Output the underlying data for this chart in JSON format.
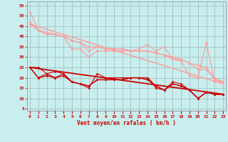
{
  "xlabel": "Vent moyen/en rafales ( km/h )",
  "bg_color": "#c8eeee",
  "grid_color": "#a0b8b8",
  "xlim": [
    -0.3,
    23.3
  ],
  "ylim": [
    4,
    57
  ],
  "yticks": [
    5,
    10,
    15,
    20,
    25,
    30,
    35,
    40,
    45,
    50,
    55
  ],
  "xticks": [
    0,
    1,
    2,
    3,
    4,
    5,
    6,
    7,
    8,
    9,
    10,
    11,
    12,
    13,
    14,
    15,
    16,
    17,
    18,
    19,
    20,
    21,
    22,
    23
  ],
  "lines_pink": [
    {
      "x": [
        0,
        1,
        2,
        3,
        4,
        5,
        6,
        7,
        8,
        9,
        10,
        11,
        12,
        13,
        14,
        15,
        16,
        17,
        18,
        19,
        20,
        21,
        22,
        23
      ],
      "y": [
        52,
        43,
        41,
        41,
        40,
        34,
        34,
        30,
        33,
        33,
        33,
        33,
        33,
        34,
        36,
        33,
        35,
        29,
        28,
        21,
        20,
        37,
        18,
        18
      ],
      "color": "#ff9999",
      "lw": 0.8,
      "has_marker": true
    },
    {
      "x": [
        0,
        1,
        2,
        3,
        4,
        5,
        6,
        7,
        8,
        9,
        10,
        11,
        12,
        13,
        14,
        15,
        16,
        17,
        18,
        19,
        20,
        21,
        22,
        23
      ],
      "y": [
        47,
        43,
        42,
        41,
        40,
        38,
        37,
        33,
        35,
        34,
        34,
        34,
        33,
        33,
        33,
        32,
        31,
        30,
        29,
        27,
        26,
        25,
        20,
        18
      ],
      "color": "#ff9999",
      "lw": 0.8,
      "has_marker": true
    },
    {
      "x": [
        0,
        1,
        2,
        3,
        4,
        5,
        6,
        7,
        8,
        9,
        10,
        11,
        12,
        13,
        14,
        15,
        16,
        17,
        18,
        19,
        20,
        21,
        22,
        23
      ],
      "y": [
        46,
        43,
        41,
        41,
        40,
        38,
        37,
        35,
        35,
        34,
        34,
        34,
        33,
        33,
        33,
        32,
        31,
        29,
        29,
        27,
        24,
        24,
        19,
        18
      ],
      "color": "#ff9999",
      "lw": 0.8,
      "has_marker": true
    },
    {
      "x": [
        0,
        23
      ],
      "y": [
        46,
        17
      ],
      "color": "#ff9999",
      "lw": 1.0,
      "has_marker": false
    }
  ],
  "lines_red": [
    {
      "x": [
        0,
        1,
        2,
        3,
        4,
        5,
        6,
        7,
        8,
        9,
        10,
        11,
        12,
        13,
        14,
        15,
        16,
        17,
        18,
        19,
        20,
        21,
        22,
        23
      ],
      "y": [
        25,
        25,
        22,
        23,
        22,
        18,
        17,
        15,
        22,
        20,
        20,
        20,
        20,
        20,
        20,
        15,
        14,
        18,
        17,
        14,
        10,
        13,
        12,
        12
      ],
      "color": "#cc0000",
      "lw": 0.8,
      "has_marker": true
    },
    {
      "x": [
        0,
        1,
        2,
        3,
        4,
        5,
        6,
        7,
        8,
        9,
        10,
        11,
        12,
        13,
        14,
        15,
        16,
        17,
        18,
        19,
        20,
        21,
        22,
        23
      ],
      "y": [
        25,
        20,
        22,
        20,
        22,
        18,
        17,
        16,
        19,
        19,
        19,
        19,
        20,
        20,
        20,
        16,
        14,
        17,
        16,
        14,
        10,
        13,
        12,
        12
      ],
      "color": "#cc0000",
      "lw": 0.8,
      "has_marker": true
    },
    {
      "x": [
        0,
        1,
        2,
        3,
        4,
        5,
        6,
        7,
        8,
        9,
        10,
        11,
        12,
        13,
        14,
        15,
        16,
        17,
        18,
        19,
        20,
        21,
        22,
        23
      ],
      "y": [
        25,
        20,
        21,
        20,
        21,
        18,
        17,
        16,
        19,
        19,
        19,
        19,
        20,
        20,
        19,
        16,
        14,
        17,
        16,
        14,
        10,
        13,
        12,
        12
      ],
      "color": "#cc0000",
      "lw": 1.0,
      "has_marker": true
    },
    {
      "x": [
        0,
        23
      ],
      "y": [
        25,
        12
      ],
      "color": "#cc0000",
      "lw": 1.3,
      "has_marker": false
    }
  ],
  "marker": "D",
  "marker_size": 1.8
}
